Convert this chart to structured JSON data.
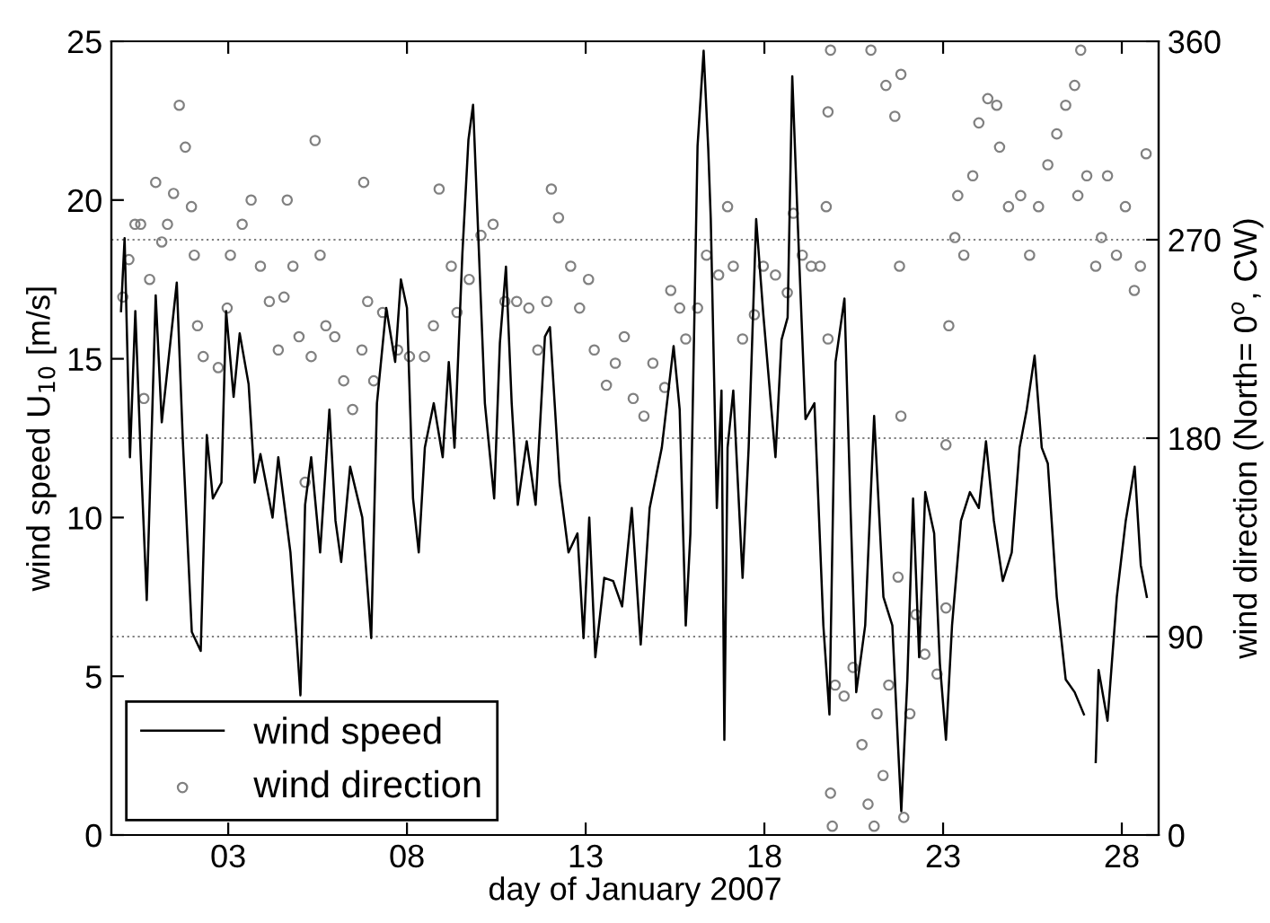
{
  "chart_data": {
    "type": "line",
    "xlabel": "day of January 2007",
    "ylabel": "wind speed U$_{10}$ [m/s]",
    "y2label": "wind direction (North= 0$^{o}$, CW)",
    "xlim": [
      -0.27,
      29.03
    ],
    "xticks": [
      {
        "value": 3,
        "label": "03"
      },
      {
        "value": 8,
        "label": "08"
      },
      {
        "value": 13,
        "label": "13"
      },
      {
        "value": 18,
        "label": "18"
      },
      {
        "value": 23,
        "label": "23"
      },
      {
        "value": 28,
        "label": "28"
      }
    ],
    "ylim": [
      0,
      25
    ],
    "yticks": [
      0,
      5,
      10,
      15,
      20,
      25
    ],
    "y2lim": [
      0,
      360
    ],
    "y2ticks": [
      0,
      90,
      180,
      270,
      360
    ],
    "grid": "y",
    "legend": "bottom left",
    "series": [
      {
        "name": "wind speed",
        "color": "#000000",
        "marker": "none",
        "line_style": "solid",
        "x": [
          0.0,
          0.1,
          0.25,
          0.4,
          0.55,
          0.72,
          0.97,
          1.14,
          1.56,
          1.73,
          1.98,
          2.23,
          2.4,
          2.57,
          2.81,
          2.94,
          3.15,
          3.32,
          3.57,
          3.74,
          3.9,
          4.24,
          4.4,
          4.74,
          4.9,
          5.02,
          5.15,
          5.32,
          5.57,
          5.83,
          6.0,
          6.16,
          6.41,
          6.75,
          7.0,
          7.16,
          7.42,
          7.67,
          7.83,
          8.0,
          8.17,
          8.33,
          8.5,
          8.75,
          9.0,
          9.17,
          9.33,
          9.55,
          9.72,
          9.85,
          9.97,
          10.18,
          10.44,
          10.6,
          10.77,
          10.93,
          11.1,
          11.35,
          11.6,
          11.86,
          12.0,
          12.27,
          12.52,
          12.77,
          12.94,
          13.1,
          13.27,
          13.52,
          13.77,
          14.02,
          14.29,
          14.54,
          14.79,
          15.13,
          15.46,
          15.63,
          15.8,
          15.93,
          16.13,
          16.3,
          16.43,
          16.5,
          16.67,
          16.8,
          16.88,
          16.97,
          17.13,
          17.39,
          17.56,
          17.77,
          17.97,
          18.31,
          18.48,
          18.65,
          18.78,
          18.95,
          19.15,
          19.4,
          19.65,
          19.82,
          19.99,
          20.24,
          20.41,
          20.57,
          20.82,
          21.07,
          21.33,
          21.58,
          21.74,
          21.83,
          22.0,
          22.16,
          22.33,
          22.5,
          22.75,
          22.91,
          23.08,
          23.25,
          23.5,
          23.75,
          24.0,
          24.2,
          24.42,
          24.67,
          24.92,
          25.14,
          25.34,
          25.56,
          25.76,
          25.93,
          26.18,
          26.43,
          26.68,
          26.94,
          27.1,
          27.27,
          27.35,
          27.6,
          27.86,
          28.11,
          28.36,
          28.53,
          28.7
        ],
        "values": [
          16.5,
          18.8,
          11.9,
          16.5,
          12.0,
          7.4,
          17.0,
          13.0,
          17.4,
          12.4,
          6.4,
          5.8,
          12.6,
          10.6,
          11.1,
          16.5,
          13.8,
          15.8,
          14.2,
          11.1,
          12.0,
          10.0,
          11.9,
          8.9,
          6.4,
          4.4,
          10.4,
          11.9,
          8.9,
          13.4,
          9.9,
          8.6,
          11.6,
          10.0,
          6.2,
          13.6,
          16.6,
          14.9,
          17.5,
          16.6,
          10.6,
          8.9,
          12.2,
          13.6,
          11.9,
          14.9,
          12.2,
          18.3,
          21.9,
          23.0,
          19.6,
          13.6,
          10.6,
          15.5,
          17.9,
          13.6,
          10.4,
          12.4,
          10.4,
          15.7,
          16.0,
          11.1,
          8.9,
          9.5,
          6.2,
          10.0,
          5.6,
          8.1,
          8.0,
          7.2,
          10.3,
          6.0,
          10.3,
          12.2,
          15.4,
          13.4,
          6.6,
          9.5,
          21.7,
          24.7,
          21.6,
          19.4,
          10.3,
          14.0,
          3.0,
          12.2,
          14.0,
          8.1,
          12.2,
          19.4,
          16.4,
          11.9,
          15.6,
          16.3,
          23.9,
          18.8,
          13.1,
          13.6,
          6.6,
          3.8,
          14.9,
          16.9,
          10.3,
          4.5,
          6.6,
          13.2,
          7.5,
          6.6,
          2.8,
          0.75,
          4.9,
          10.6,
          5.6,
          10.8,
          9.5,
          5.4,
          3.0,
          6.6,
          9.9,
          10.8,
          10.3,
          12.4,
          9.9,
          8.0,
          8.9,
          12.2,
          13.4,
          15.1,
          12.2,
          11.7,
          7.5,
          4.9,
          4.5,
          3.8,
          null,
          2.3,
          5.2,
          3.6,
          7.5,
          9.9,
          11.6,
          8.5,
          7.5
        ]
      },
      {
        "name": "wind direction",
        "type": "scatter",
        "axis": "y2",
        "color": "#808080",
        "marker": "circle",
        "x": [
          0.05,
          0.22,
          0.39,
          0.55,
          0.64,
          0.8,
          0.97,
          1.14,
          1.3,
          1.47,
          1.63,
          1.8,
          1.97,
          2.05,
          2.14,
          2.3,
          2.72,
          2.97,
          3.06,
          3.39,
          3.64,
          3.9,
          4.15,
          4.4,
          4.56,
          4.65,
          4.81,
          4.98,
          5.15,
          5.32,
          5.43,
          5.57,
          5.73,
          5.98,
          6.23,
          6.48,
          6.74,
          6.79,
          6.9,
          7.07,
          7.32,
          7.74,
          8.07,
          8.49,
          8.74,
          8.9,
          9.24,
          9.4,
          9.74,
          10.07,
          10.41,
          10.74,
          11.07,
          11.41,
          11.66,
          11.91,
          12.04,
          12.24,
          12.58,
          12.83,
          13.08,
          13.24,
          13.58,
          13.83,
          14.08,
          14.33,
          14.63,
          14.88,
          15.21,
          15.38,
          15.63,
          15.8,
          16.13,
          16.38,
          16.72,
          16.97,
          17.13,
          17.39,
          17.72,
          17.97,
          18.31,
          18.64,
          18.81,
          19.06,
          19.31,
          19.56,
          19.73,
          19.78,
          19.85,
          19.78,
          19.85,
          19.9,
          19.98,
          20.23,
          20.48,
          20.73,
          20.9,
          21.07,
          21.15,
          21.32,
          21.48,
          20.98,
          21.4,
          21.65,
          21.82,
          21.78,
          21.82,
          21.74,
          21.9,
          22.07,
          22.24,
          22.49,
          22.83,
          23.08,
          23.08,
          23.16,
          23.33,
          23.41,
          23.58,
          23.83,
          24.0,
          24.25,
          24.5,
          24.58,
          24.83,
          25.17,
          25.42,
          25.67,
          25.93,
          26.18,
          26.43,
          26.68,
          26.85,
          26.77,
          27.02,
          27.27,
          27.43,
          27.6,
          27.85,
          28.1,
          28.35,
          28.52,
          28.68
        ],
        "values": [
          244,
          261,
          277,
          277,
          198,
          252,
          296,
          269,
          277,
          291,
          331,
          312,
          285,
          263,
          231,
          217,
          212,
          239,
          263,
          277,
          288,
          258,
          242,
          220,
          244,
          288,
          258,
          226,
          160,
          217,
          315,
          263,
          231,
          226,
          206,
          193,
          220,
          296,
          242,
          206,
          237,
          220,
          217,
          217,
          231,
          293,
          258,
          237,
          252,
          272,
          277,
          242,
          242,
          239,
          220,
          242,
          293,
          280,
          258,
          239,
          252,
          220,
          204,
          214,
          226,
          198,
          190,
          214,
          203,
          247,
          239,
          225,
          239,
          263,
          254,
          285,
          258,
          225,
          236,
          258,
          254,
          246,
          282,
          263,
          258,
          258,
          285,
          328,
          356,
          225,
          19,
          4,
          68,
          63,
          76,
          41,
          14,
          4,
          55,
          27,
          68,
          356,
          340,
          326,
          345,
          258,
          190,
          117,
          8,
          55,
          100,
          82,
          73,
          103,
          177,
          231,
          271,
          290,
          263,
          299,
          323,
          334,
          331,
          312,
          285,
          290,
          263,
          285,
          304,
          318,
          331,
          340,
          356,
          290,
          299,
          258,
          271,
          299,
          263,
          285,
          247,
          258,
          309
        ]
      }
    ]
  }
}
